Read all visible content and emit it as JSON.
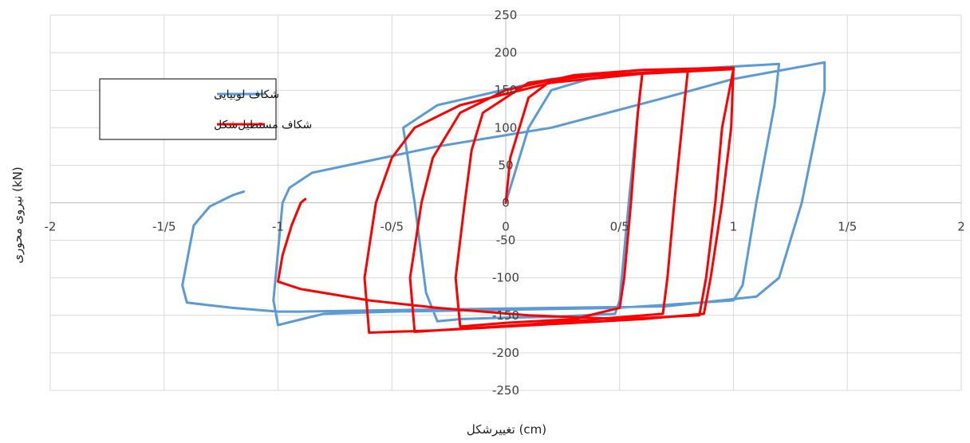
{
  "chart_data": {
    "type": "line",
    "xlabel": "تغییرشکل (cm)",
    "ylabel": "نیروی محوری (kN)",
    "xlim": [
      -2,
      2
    ],
    "ylim": [
      -250,
      250
    ],
    "x_ticks": [
      -2,
      -1.5,
      -1,
      -0.5,
      0,
      0.5,
      1,
      1.5,
      2
    ],
    "x_tick_labels": [
      "-2",
      "-1/5",
      "-1",
      "-0/5",
      "0",
      "0/5",
      "1",
      "1/5",
      "2"
    ],
    "y_ticks": [
      250,
      200,
      150,
      100,
      50,
      0,
      -50,
      -100,
      -150,
      -200,
      -250
    ],
    "y_tick_labels": [
      "250",
      "200",
      "150",
      "100",
      "50",
      "0",
      "-50",
      "-100",
      "-150",
      "-200",
      "-250"
    ],
    "grid": true,
    "legend_position": "left",
    "series": [
      {
        "name": "شکاف لوبیایی",
        "color": "#5b9bd5",
        "points": [
          [
            0,
            0
          ],
          [
            0.1,
            100
          ],
          [
            0.2,
            150
          ],
          [
            0.4,
            168
          ],
          [
            0.6,
            173
          ],
          [
            0.58,
            120
          ],
          [
            0.54,
            0
          ],
          [
            0.5,
            -130
          ],
          [
            0.48,
            -148
          ],
          [
            0.2,
            -152
          ],
          [
            0,
            -153
          ],
          [
            -0.2,
            -155
          ],
          [
            -0.3,
            -158
          ],
          [
            -0.35,
            -120
          ],
          [
            -0.4,
            0
          ],
          [
            -0.45,
            100
          ],
          [
            -0.3,
            130
          ],
          [
            0.2,
            165
          ],
          [
            0.8,
            178
          ],
          [
            1.2,
            185
          ],
          [
            1.18,
            130
          ],
          [
            1.1,
            0
          ],
          [
            1.04,
            -110
          ],
          [
            1.0,
            -130
          ],
          [
            0.5,
            -140
          ],
          [
            -0.5,
            -145
          ],
          [
            -0.8,
            -148
          ],
          [
            -1.0,
            -163
          ],
          [
            -1.02,
            -130
          ],
          [
            -0.98,
            0
          ],
          [
            -0.95,
            20
          ],
          [
            -0.85,
            40
          ],
          [
            -0.3,
            75
          ],
          [
            0.2,
            100
          ],
          [
            0.7,
            140
          ],
          [
            1.0,
            165
          ],
          [
            1.4,
            187
          ],
          [
            1.4,
            150
          ],
          [
            1.3,
            0
          ],
          [
            1.2,
            -100
          ],
          [
            1.1,
            -125
          ],
          [
            0.7,
            -138
          ],
          [
            0.0,
            -141
          ],
          [
            -0.5,
            -143
          ],
          [
            -0.9,
            -145
          ],
          [
            -1.0,
            -145
          ],
          [
            -1.2,
            -140
          ],
          [
            -1.4,
            -133
          ],
          [
            -1.42,
            -110
          ],
          [
            -1.37,
            -30
          ],
          [
            -1.3,
            -5
          ],
          [
            -1.2,
            10
          ],
          [
            -1.15,
            15
          ]
        ]
      },
      {
        "name": "شکاف مستطیل‌شکل",
        "color": "#ff0000",
        "points": [
          [
            0,
            0
          ],
          [
            0.02,
            60
          ],
          [
            0.1,
            140
          ],
          [
            0.2,
            163
          ],
          [
            0.4,
            170
          ],
          [
            0.6,
            173
          ],
          [
            0.58,
            120
          ],
          [
            0.55,
            0
          ],
          [
            0.52,
            -100
          ],
          [
            0.5,
            -140
          ],
          [
            0.3,
            -155
          ],
          [
            0,
            -160
          ],
          [
            -0.2,
            -165
          ],
          [
            -0.22,
            -100
          ],
          [
            -0.18,
            0
          ],
          [
            -0.15,
            70
          ],
          [
            -0.1,
            120
          ],
          [
            0.1,
            160
          ],
          [
            0.3,
            168
          ],
          [
            0.6,
            173
          ],
          [
            0.8,
            177
          ],
          [
            0.78,
            120
          ],
          [
            0.74,
            0
          ],
          [
            0.71,
            -100
          ],
          [
            0.69,
            -148
          ],
          [
            0.4,
            -155
          ],
          [
            0.1,
            -162
          ],
          [
            -0.2,
            -168
          ],
          [
            -0.4,
            -172
          ],
          [
            -0.42,
            -100
          ],
          [
            -0.37,
            0
          ],
          [
            -0.32,
            60
          ],
          [
            -0.2,
            120
          ],
          [
            0,
            150
          ],
          [
            0.3,
            170
          ],
          [
            0.6,
            177
          ],
          [
            1.0,
            180
          ],
          [
            0.99,
            100
          ],
          [
            0.95,
            0
          ],
          [
            0.9,
            -100
          ],
          [
            0.87,
            -148
          ],
          [
            0.6,
            -155
          ],
          [
            0.3,
            -160
          ],
          [
            0,
            -165
          ],
          [
            -0.3,
            -170
          ],
          [
            -0.6,
            -173
          ],
          [
            -0.62,
            -100
          ],
          [
            -0.57,
            0
          ],
          [
            -0.5,
            60
          ],
          [
            -0.4,
            100
          ],
          [
            -0.2,
            130
          ],
          [
            0.2,
            160
          ],
          [
            0.6,
            172
          ],
          [
            1.0,
            178
          ],
          [
            0.95,
            100
          ],
          [
            0.92,
            0
          ],
          [
            0.88,
            -100
          ],
          [
            0.85,
            -150
          ],
          [
            0.5,
            -155
          ],
          [
            0.1,
            -150
          ],
          [
            -0.3,
            -140
          ],
          [
            -0.6,
            -130
          ],
          [
            -0.9,
            -115
          ],
          [
            -1.0,
            -105
          ],
          [
            -0.98,
            -70
          ],
          [
            -0.94,
            -30
          ],
          [
            -0.9,
            0
          ],
          [
            -0.88,
            5
          ]
        ]
      }
    ]
  }
}
